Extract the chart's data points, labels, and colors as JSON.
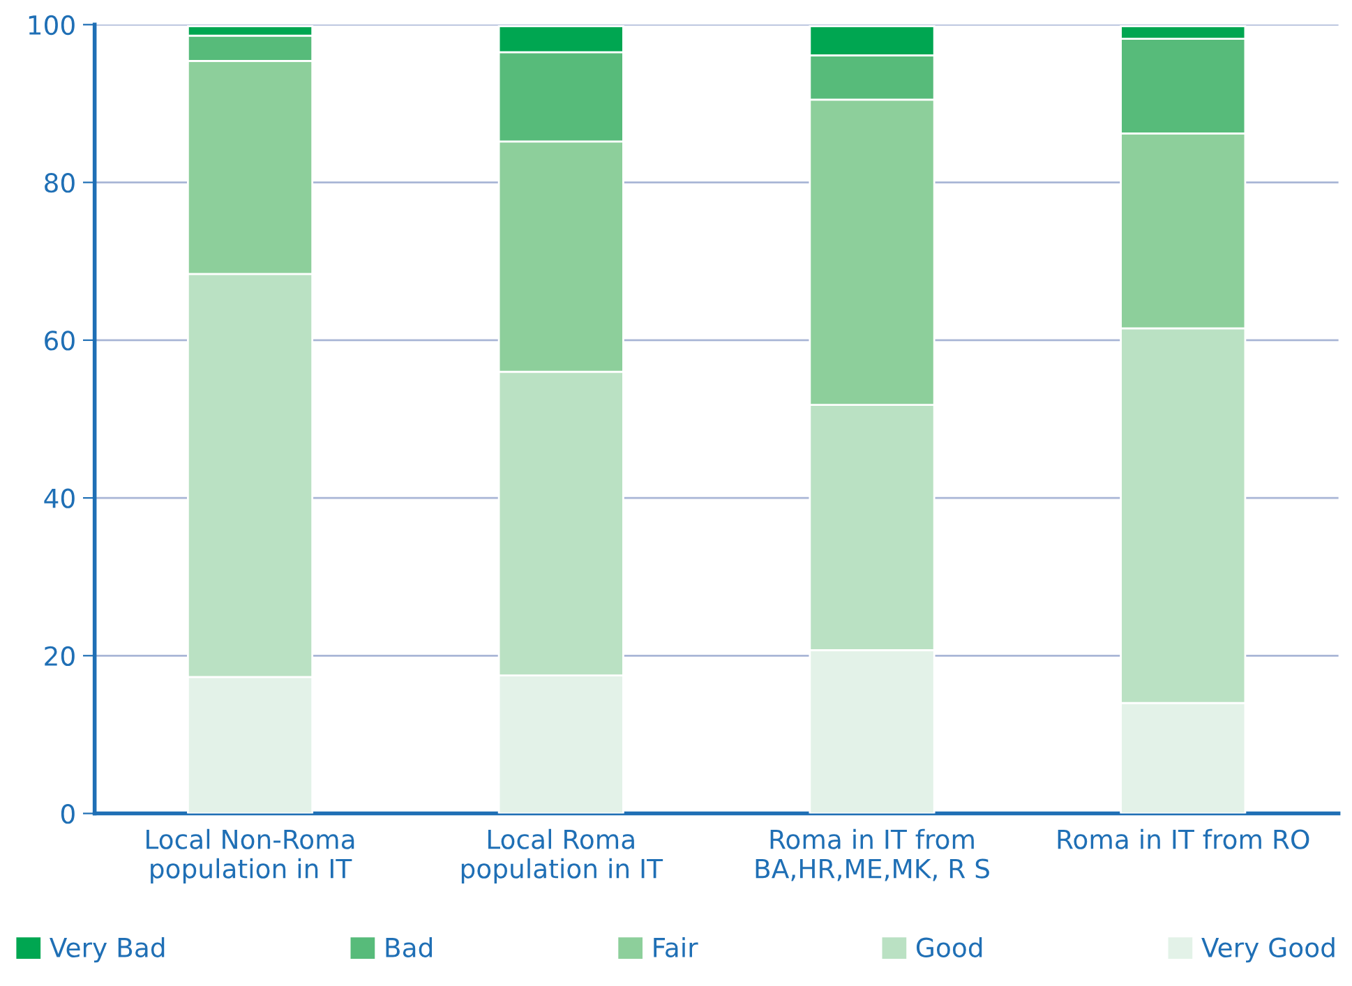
{
  "chart_data": {
    "type": "bar",
    "stacked": true,
    "categories": [
      "Local Non-Roma\npopulation in IT",
      "Local Roma\npopulation in IT",
      "Roma in IT from\nBA,HR,ME,MK, R S",
      "Roma in IT from RO"
    ],
    "series": [
      {
        "name": "Very Good",
        "color": "#e3f2e8",
        "values": [
          17.3,
          17.5,
          20.7,
          14.0
        ]
      },
      {
        "name": "Good",
        "color": "#bae1c3",
        "values": [
          51.1,
          38.5,
          31.1,
          47.5
        ]
      },
      {
        "name": "Fair",
        "color": "#8dcf9b",
        "values": [
          27.0,
          29.2,
          38.7,
          24.7
        ]
      },
      {
        "name": "Bad",
        "color": "#57bb7a",
        "values": [
          3.2,
          11.3,
          5.6,
          12.0
        ]
      },
      {
        "name": "Very Bad",
        "color": "#00a651",
        "values": [
          1.2,
          3.3,
          3.7,
          1.6
        ]
      }
    ],
    "ylim": [
      0,
      100
    ],
    "yticks": [
      0,
      20,
      40,
      60,
      80,
      100
    ],
    "grid": "y",
    "legend": "bottom"
  }
}
